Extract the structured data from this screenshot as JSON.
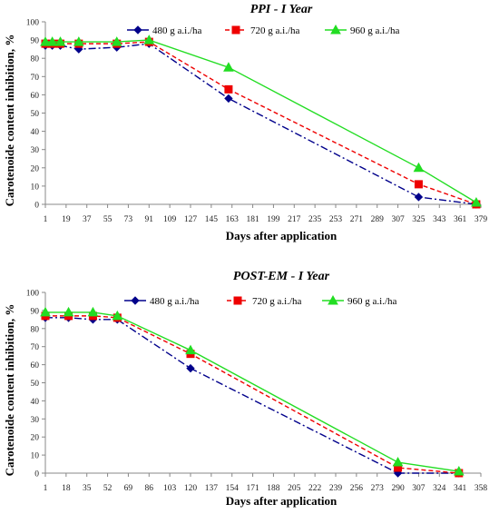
{
  "chart_data": [
    {
      "type": "line",
      "title": "PPI - I Year",
      "xlabel": "Days after application",
      "ylabel": "Carotenoide content inhibition, %",
      "ylim": [
        0,
        100
      ],
      "yticks": [
        0,
        10,
        20,
        30,
        40,
        50,
        60,
        70,
        80,
        90,
        100
      ],
      "xlim": [
        1,
        379
      ],
      "xticks": [
        1,
        19,
        37,
        55,
        73,
        91,
        109,
        127,
        145,
        163,
        181,
        199,
        217,
        235,
        253,
        271,
        289,
        307,
        325,
        343,
        361,
        379
      ],
      "legend_position": "top",
      "grid": false,
      "series": [
        {
          "name": "480 g a.i./ha",
          "color": "#00008b",
          "marker": "diamond",
          "dash": "dashdot",
          "x": [
            1,
            7,
            14,
            30,
            63,
            91,
            160,
            325,
            375
          ],
          "y": [
            87,
            87,
            87,
            85,
            86,
            88,
            58,
            4,
            0
          ]
        },
        {
          "name": "720 g a.i./ha",
          "color": "#ee0000",
          "marker": "square",
          "dash": "dashed",
          "x": [
            1,
            7,
            14,
            30,
            63,
            91,
            160,
            325,
            375
          ],
          "y": [
            88,
            88,
            88,
            88,
            88,
            89,
            63,
            11,
            0
          ]
        },
        {
          "name": "960 g a.i./ha",
          "color": "#22dd22",
          "marker": "triangle",
          "dash": "solid",
          "x": [
            1,
            7,
            14,
            30,
            63,
            91,
            160,
            325,
            375
          ],
          "y": [
            89,
            89,
            89,
            89,
            89,
            90,
            75,
            20,
            1
          ]
        }
      ]
    },
    {
      "type": "line",
      "title": "POST-EM - I Year",
      "xlabel": "Days after application",
      "ylabel": "Carotenoide content inhibition, %",
      "ylim": [
        0,
        100
      ],
      "yticks": [
        0,
        10,
        20,
        30,
        40,
        50,
        60,
        70,
        80,
        90,
        100
      ],
      "xlim": [
        1,
        358
      ],
      "xticks": [
        1,
        18,
        35,
        52,
        69,
        86,
        103,
        120,
        137,
        154,
        171,
        188,
        205,
        222,
        239,
        256,
        273,
        290,
        307,
        324,
        341,
        358
      ],
      "legend_position": "top",
      "grid": false,
      "series": [
        {
          "name": "480 g a.i./ha",
          "color": "#00008b",
          "marker": "diamond",
          "dash": "dashdot",
          "x": [
            1,
            20,
            40,
            60,
            120,
            290,
            340
          ],
          "y": [
            86,
            86,
            85,
            85,
            58,
            0,
            0
          ]
        },
        {
          "name": "720 g a.i./ha",
          "color": "#ee0000",
          "marker": "square",
          "dash": "dashed",
          "x": [
            1,
            20,
            40,
            60,
            120,
            290,
            340
          ],
          "y": [
            87,
            87,
            87,
            86,
            66,
            3,
            0
          ]
        },
        {
          "name": "960 g a.i./ha",
          "color": "#22dd22",
          "marker": "triangle",
          "dash": "solid",
          "x": [
            1,
            20,
            40,
            60,
            120,
            290,
            340
          ],
          "y": [
            89,
            89,
            89,
            87,
            68,
            6,
            1
          ]
        }
      ]
    }
  ]
}
